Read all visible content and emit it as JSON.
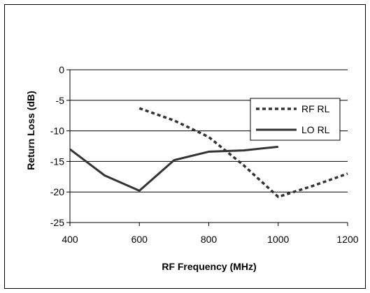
{
  "chart_data": {
    "type": "line",
    "title": "",
    "xlabel": "RF Frequency (MHz)",
    "ylabel": "Return Loss (dB)",
    "xlim": [
      400,
      1200
    ],
    "ylim": [
      -25,
      0
    ],
    "xticks": [
      400,
      600,
      800,
      1000,
      1200
    ],
    "yticks": [
      0,
      -5,
      -10,
      -15,
      -20,
      -25
    ],
    "grid": "horizontal",
    "legend": "right",
    "series": [
      {
        "name": "RF RL",
        "style": "dotted",
        "color": "#333333",
        "x": [
          600,
          700,
          800,
          900,
          1000,
          1100,
          1200
        ],
        "y": [
          -6.3,
          -8.3,
          -11.0,
          -15.6,
          -20.8,
          -19.0,
          -17.0
        ]
      },
      {
        "name": "LO RL",
        "style": "solid",
        "color": "#333333",
        "x": [
          400,
          500,
          600,
          700,
          800,
          900,
          1000
        ],
        "y": [
          -13.0,
          -17.3,
          -19.8,
          -14.8,
          -13.4,
          -13.2,
          -12.6
        ]
      }
    ]
  }
}
